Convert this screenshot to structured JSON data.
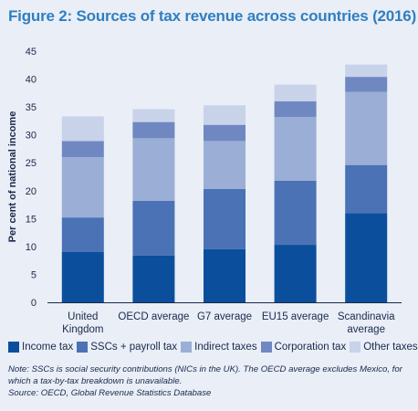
{
  "figure": {
    "title": "Figure 2: Sources of tax revenue across countries (2016)",
    "note": "Note: SSCs is social security contributions (NICs in the UK). The OECD average excludes Mexico, for which a tax-by-tax breakdown is unavailable.",
    "source": "Source: OECD, Global Revenue Statistics Database"
  },
  "chart_data": {
    "type": "bar",
    "stacked": true,
    "ylabel": "Per cent of national income",
    "ylim": [
      0,
      45
    ],
    "yticks": [
      0,
      5,
      10,
      15,
      20,
      25,
      30,
      35,
      40,
      45
    ],
    "grid": false,
    "legend_position": "bottom",
    "categories": [
      [
        "United",
        "Kingdom"
      ],
      [
        "OECD average"
      ],
      [
        "G7 average"
      ],
      [
        "EU15 average"
      ],
      [
        "Scandinavia",
        "average"
      ]
    ],
    "series": [
      {
        "name": "Income tax",
        "color": "#0b4f9c",
        "values": [
          9.0,
          8.4,
          9.5,
          10.3,
          16.0
        ]
      },
      {
        "name": "SSCs + payroll tax",
        "color": "#4a72b5",
        "values": [
          6.2,
          9.8,
          10.8,
          11.5,
          8.6
        ]
      },
      {
        "name": "Indirect taxes",
        "color": "#9aaed6",
        "values": [
          10.8,
          11.2,
          8.6,
          11.4,
          13.1
        ]
      },
      {
        "name": "Corporation tax",
        "color": "#7088c2",
        "values": [
          2.9,
          2.9,
          2.9,
          2.8,
          2.7
        ]
      },
      {
        "name": "Other taxes",
        "color": "#c8d3ea",
        "values": [
          4.4,
          2.3,
          3.5,
          3.0,
          2.2
        ]
      }
    ]
  }
}
